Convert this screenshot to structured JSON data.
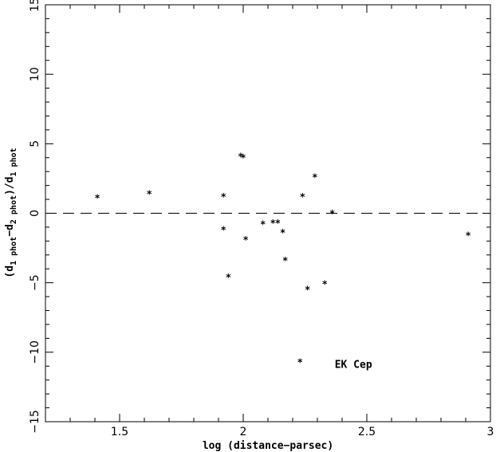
{
  "chart_data": {
    "type": "scatter",
    "xlabel": "log (distance−parsec)",
    "ylabel_parts": [
      "(d",
      "1 phot",
      "−d",
      "2 phot",
      ")/d",
      "1 phot"
    ],
    "xlim": [
      1.2,
      3.0
    ],
    "ylim": [
      -15,
      15
    ],
    "x_ticks": [
      1.5,
      2.0,
      2.5,
      3.0
    ],
    "x_tick_labels": [
      "1.5",
      "2",
      "2.5",
      "3"
    ],
    "y_ticks": [
      -15,
      -10,
      -5,
      0,
      5,
      10,
      15
    ],
    "y_tick_labels": [
      "−15",
      "−10",
      "−5",
      "0",
      "5",
      "10",
      "15"
    ],
    "reference_line": {
      "y": 0,
      "style": "dashed"
    },
    "marker": "*",
    "points": [
      {
        "x": 1.41,
        "y": 1.2
      },
      {
        "x": 1.62,
        "y": 1.5
      },
      {
        "x": 1.92,
        "y": 1.3
      },
      {
        "x": 1.92,
        "y": -1.1
      },
      {
        "x": 1.94,
        "y": -4.5
      },
      {
        "x": 1.99,
        "y": 4.2
      },
      {
        "x": 2.0,
        "y": 4.1
      },
      {
        "x": 2.01,
        "y": -1.8
      },
      {
        "x": 2.08,
        "y": -0.7
      },
      {
        "x": 2.12,
        "y": -0.6
      },
      {
        "x": 2.14,
        "y": -0.6
      },
      {
        "x": 2.16,
        "y": -1.3
      },
      {
        "x": 2.17,
        "y": -3.3
      },
      {
        "x": 2.23,
        "y": -10.6
      },
      {
        "x": 2.24,
        "y": 1.3
      },
      {
        "x": 2.26,
        "y": -5.4
      },
      {
        "x": 2.29,
        "y": 2.7
      },
      {
        "x": 2.33,
        "y": -5.0
      },
      {
        "x": 2.36,
        "y": 0.1
      },
      {
        "x": 2.91,
        "y": -1.5
      }
    ],
    "annotations": [
      {
        "text": "EK Cep",
        "x": 2.37,
        "y": -10.9
      }
    ],
    "grid": false
  }
}
